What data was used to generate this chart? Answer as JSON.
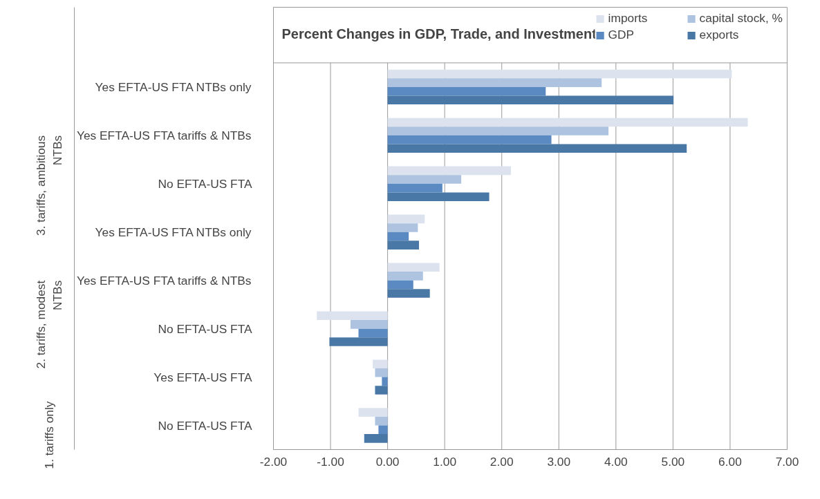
{
  "chart_data": {
    "type": "bar",
    "orientation": "horizontal",
    "title": "Percent Changes in GDP, Trade, and Investment",
    "categories": [
      "Yes EFTA-US FTA NTBs only",
      "Yes EFTA-US FTA tariffs & NTBs",
      "No EFTA-US FTA",
      "Yes EFTA-US FTA NTBs only",
      "Yes EFTA-US FTA tariffs & NTBs",
      "No EFTA-US FTA",
      "Yes EFTA-US FTA",
      "No EFTA-US FTA"
    ],
    "annotations": [
      "3. tariffs, ambitious NTBs",
      "2. tariffs, modest NTBs",
      "1. tariffs only"
    ],
    "series": [
      {
        "name": "imports",
        "color": "#dce3ef",
        "values": [
          6.03,
          6.31,
          2.16,
          0.65,
          0.91,
          -1.24,
          -0.26,
          -0.51
        ]
      },
      {
        "name": "capital stock, %",
        "color": "#adc3e0",
        "values": [
          3.75,
          3.87,
          1.29,
          0.53,
          0.62,
          -0.65,
          -0.22,
          -0.22
        ]
      },
      {
        "name": "GDP",
        "color": "#5a8ac1",
        "values": [
          2.77,
          2.87,
          0.96,
          0.37,
          0.45,
          -0.51,
          -0.1,
          -0.16
        ]
      },
      {
        "name": "exports",
        "color": "#4a78a6",
        "values": [
          5.01,
          5.24,
          1.78,
          0.55,
          0.74,
          -1.02,
          -0.22,
          -0.41
        ]
      }
    ],
    "xlim": [
      -2,
      7
    ],
    "xticks": [
      {
        "value": -2,
        "label": "-2.00"
      },
      {
        "value": -1,
        "label": "-1.00"
      },
      {
        "value": 0,
        "label": "0.00"
      },
      {
        "value": 1,
        "label": "1.00"
      },
      {
        "value": 2,
        "label": "2.00"
      },
      {
        "value": 3,
        "label": "3.00"
      },
      {
        "value": 4,
        "label": "4.00"
      },
      {
        "value": 5,
        "label": "5.00"
      },
      {
        "value": 6,
        "label": "6.00"
      },
      {
        "value": 7,
        "label": "7.00"
      }
    ],
    "grid": "x",
    "legend": "top right"
  }
}
